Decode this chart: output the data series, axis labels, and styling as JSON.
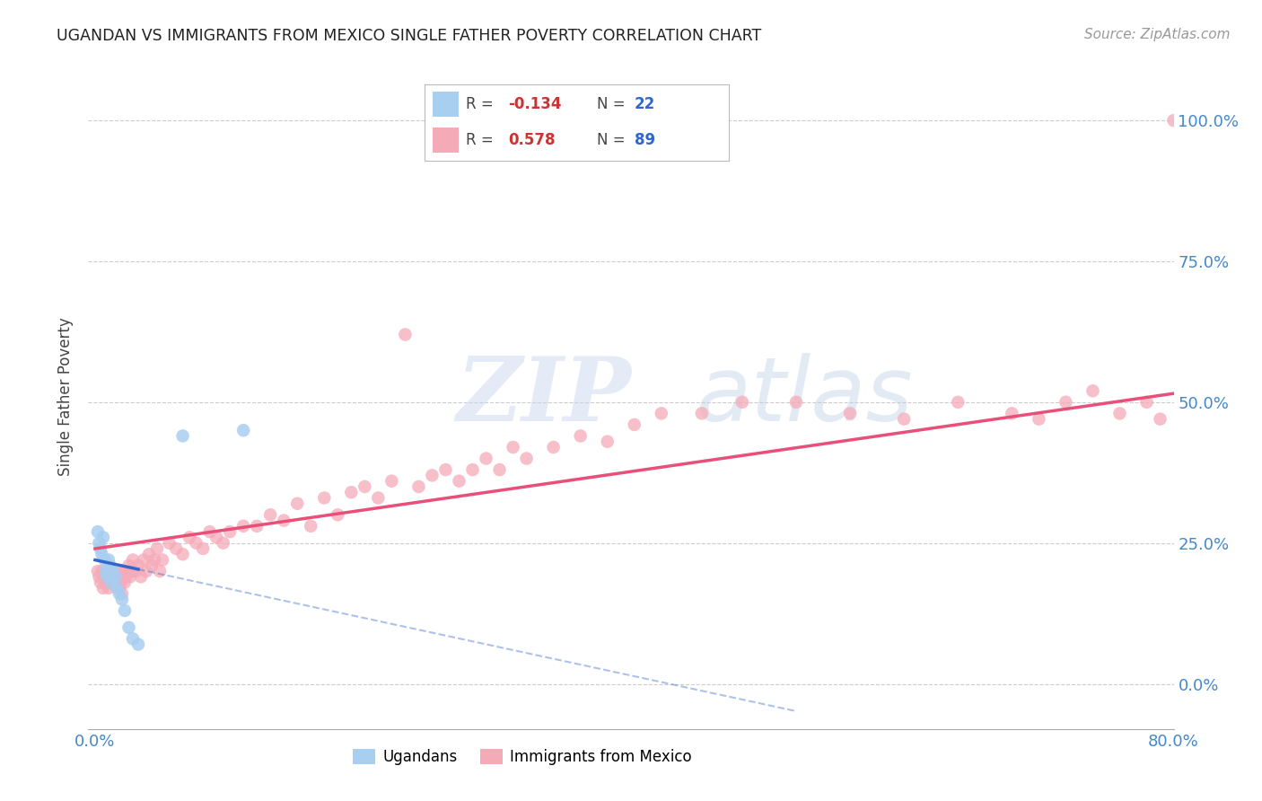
{
  "title": "UGANDAN VS IMMIGRANTS FROM MEXICO SINGLE FATHER POVERTY CORRELATION CHART",
  "source": "Source: ZipAtlas.com",
  "ylabel": "Single Father Poverty",
  "ytick_labels_right": [
    "0.0%",
    "25.0%",
    "50.0%",
    "75.0%",
    "100.0%"
  ],
  "ytick_values": [
    0.0,
    0.25,
    0.5,
    0.75,
    1.0
  ],
  "xlim": [
    -0.005,
    0.8
  ],
  "ylim": [
    -0.08,
    1.1
  ],
  "R_ugandan": -0.134,
  "N_ugandan": 22,
  "R_mexico": 0.578,
  "N_mexico": 89,
  "ugandan_color": "#a8cef0",
  "mexico_color": "#f5aab8",
  "ugandan_line_color": "#3366cc",
  "mexico_line_color": "#e8507a",
  "legend_label_ugandan": "Ugandans",
  "legend_label_mexico": "Immigrants from Mexico",
  "ugandan_x": [
    0.002,
    0.003,
    0.004,
    0.005,
    0.006,
    0.007,
    0.008,
    0.009,
    0.01,
    0.011,
    0.012,
    0.013,
    0.015,
    0.016,
    0.018,
    0.02,
    0.022,
    0.025,
    0.028,
    0.032,
    0.065,
    0.11
  ],
  "ugandan_y": [
    0.27,
    0.25,
    0.24,
    0.23,
    0.26,
    0.22,
    0.2,
    0.19,
    0.22,
    0.21,
    0.18,
    0.2,
    0.19,
    0.17,
    0.16,
    0.15,
    0.13,
    0.1,
    0.08,
    0.07,
    0.44,
    0.45
  ],
  "mexico_x": [
    0.002,
    0.003,
    0.004,
    0.005,
    0.006,
    0.007,
    0.008,
    0.009,
    0.01,
    0.011,
    0.012,
    0.013,
    0.014,
    0.015,
    0.016,
    0.017,
    0.018,
    0.019,
    0.02,
    0.021,
    0.022,
    0.023,
    0.024,
    0.025,
    0.026,
    0.027,
    0.028,
    0.03,
    0.032,
    0.034,
    0.036,
    0.038,
    0.04,
    0.042,
    0.044,
    0.046,
    0.048,
    0.05,
    0.055,
    0.06,
    0.065,
    0.07,
    0.075,
    0.08,
    0.085,
    0.09,
    0.095,
    0.1,
    0.11,
    0.12,
    0.13,
    0.14,
    0.15,
    0.16,
    0.17,
    0.18,
    0.19,
    0.2,
    0.21,
    0.22,
    0.23,
    0.24,
    0.25,
    0.26,
    0.27,
    0.28,
    0.29,
    0.3,
    0.31,
    0.32,
    0.34,
    0.36,
    0.38,
    0.4,
    0.42,
    0.45,
    0.48,
    0.52,
    0.56,
    0.6,
    0.64,
    0.68,
    0.7,
    0.72,
    0.74,
    0.76,
    0.78,
    0.79,
    0.8
  ],
  "mexico_y": [
    0.2,
    0.19,
    0.18,
    0.2,
    0.17,
    0.19,
    0.18,
    0.2,
    0.17,
    0.19,
    0.18,
    0.2,
    0.19,
    0.18,
    0.2,
    0.19,
    0.17,
    0.18,
    0.16,
    0.2,
    0.18,
    0.19,
    0.2,
    0.21,
    0.19,
    0.2,
    0.22,
    0.2,
    0.21,
    0.19,
    0.22,
    0.2,
    0.23,
    0.21,
    0.22,
    0.24,
    0.2,
    0.22,
    0.25,
    0.24,
    0.23,
    0.26,
    0.25,
    0.24,
    0.27,
    0.26,
    0.25,
    0.27,
    0.28,
    0.28,
    0.3,
    0.29,
    0.32,
    0.28,
    0.33,
    0.3,
    0.34,
    0.35,
    0.33,
    0.36,
    0.62,
    0.35,
    0.37,
    0.38,
    0.36,
    0.38,
    0.4,
    0.38,
    0.42,
    0.4,
    0.42,
    0.44,
    0.43,
    0.46,
    0.48,
    0.48,
    0.5,
    0.5,
    0.48,
    0.47,
    0.5,
    0.48,
    0.47,
    0.5,
    0.52,
    0.48,
    0.5,
    0.47,
    1.0
  ]
}
